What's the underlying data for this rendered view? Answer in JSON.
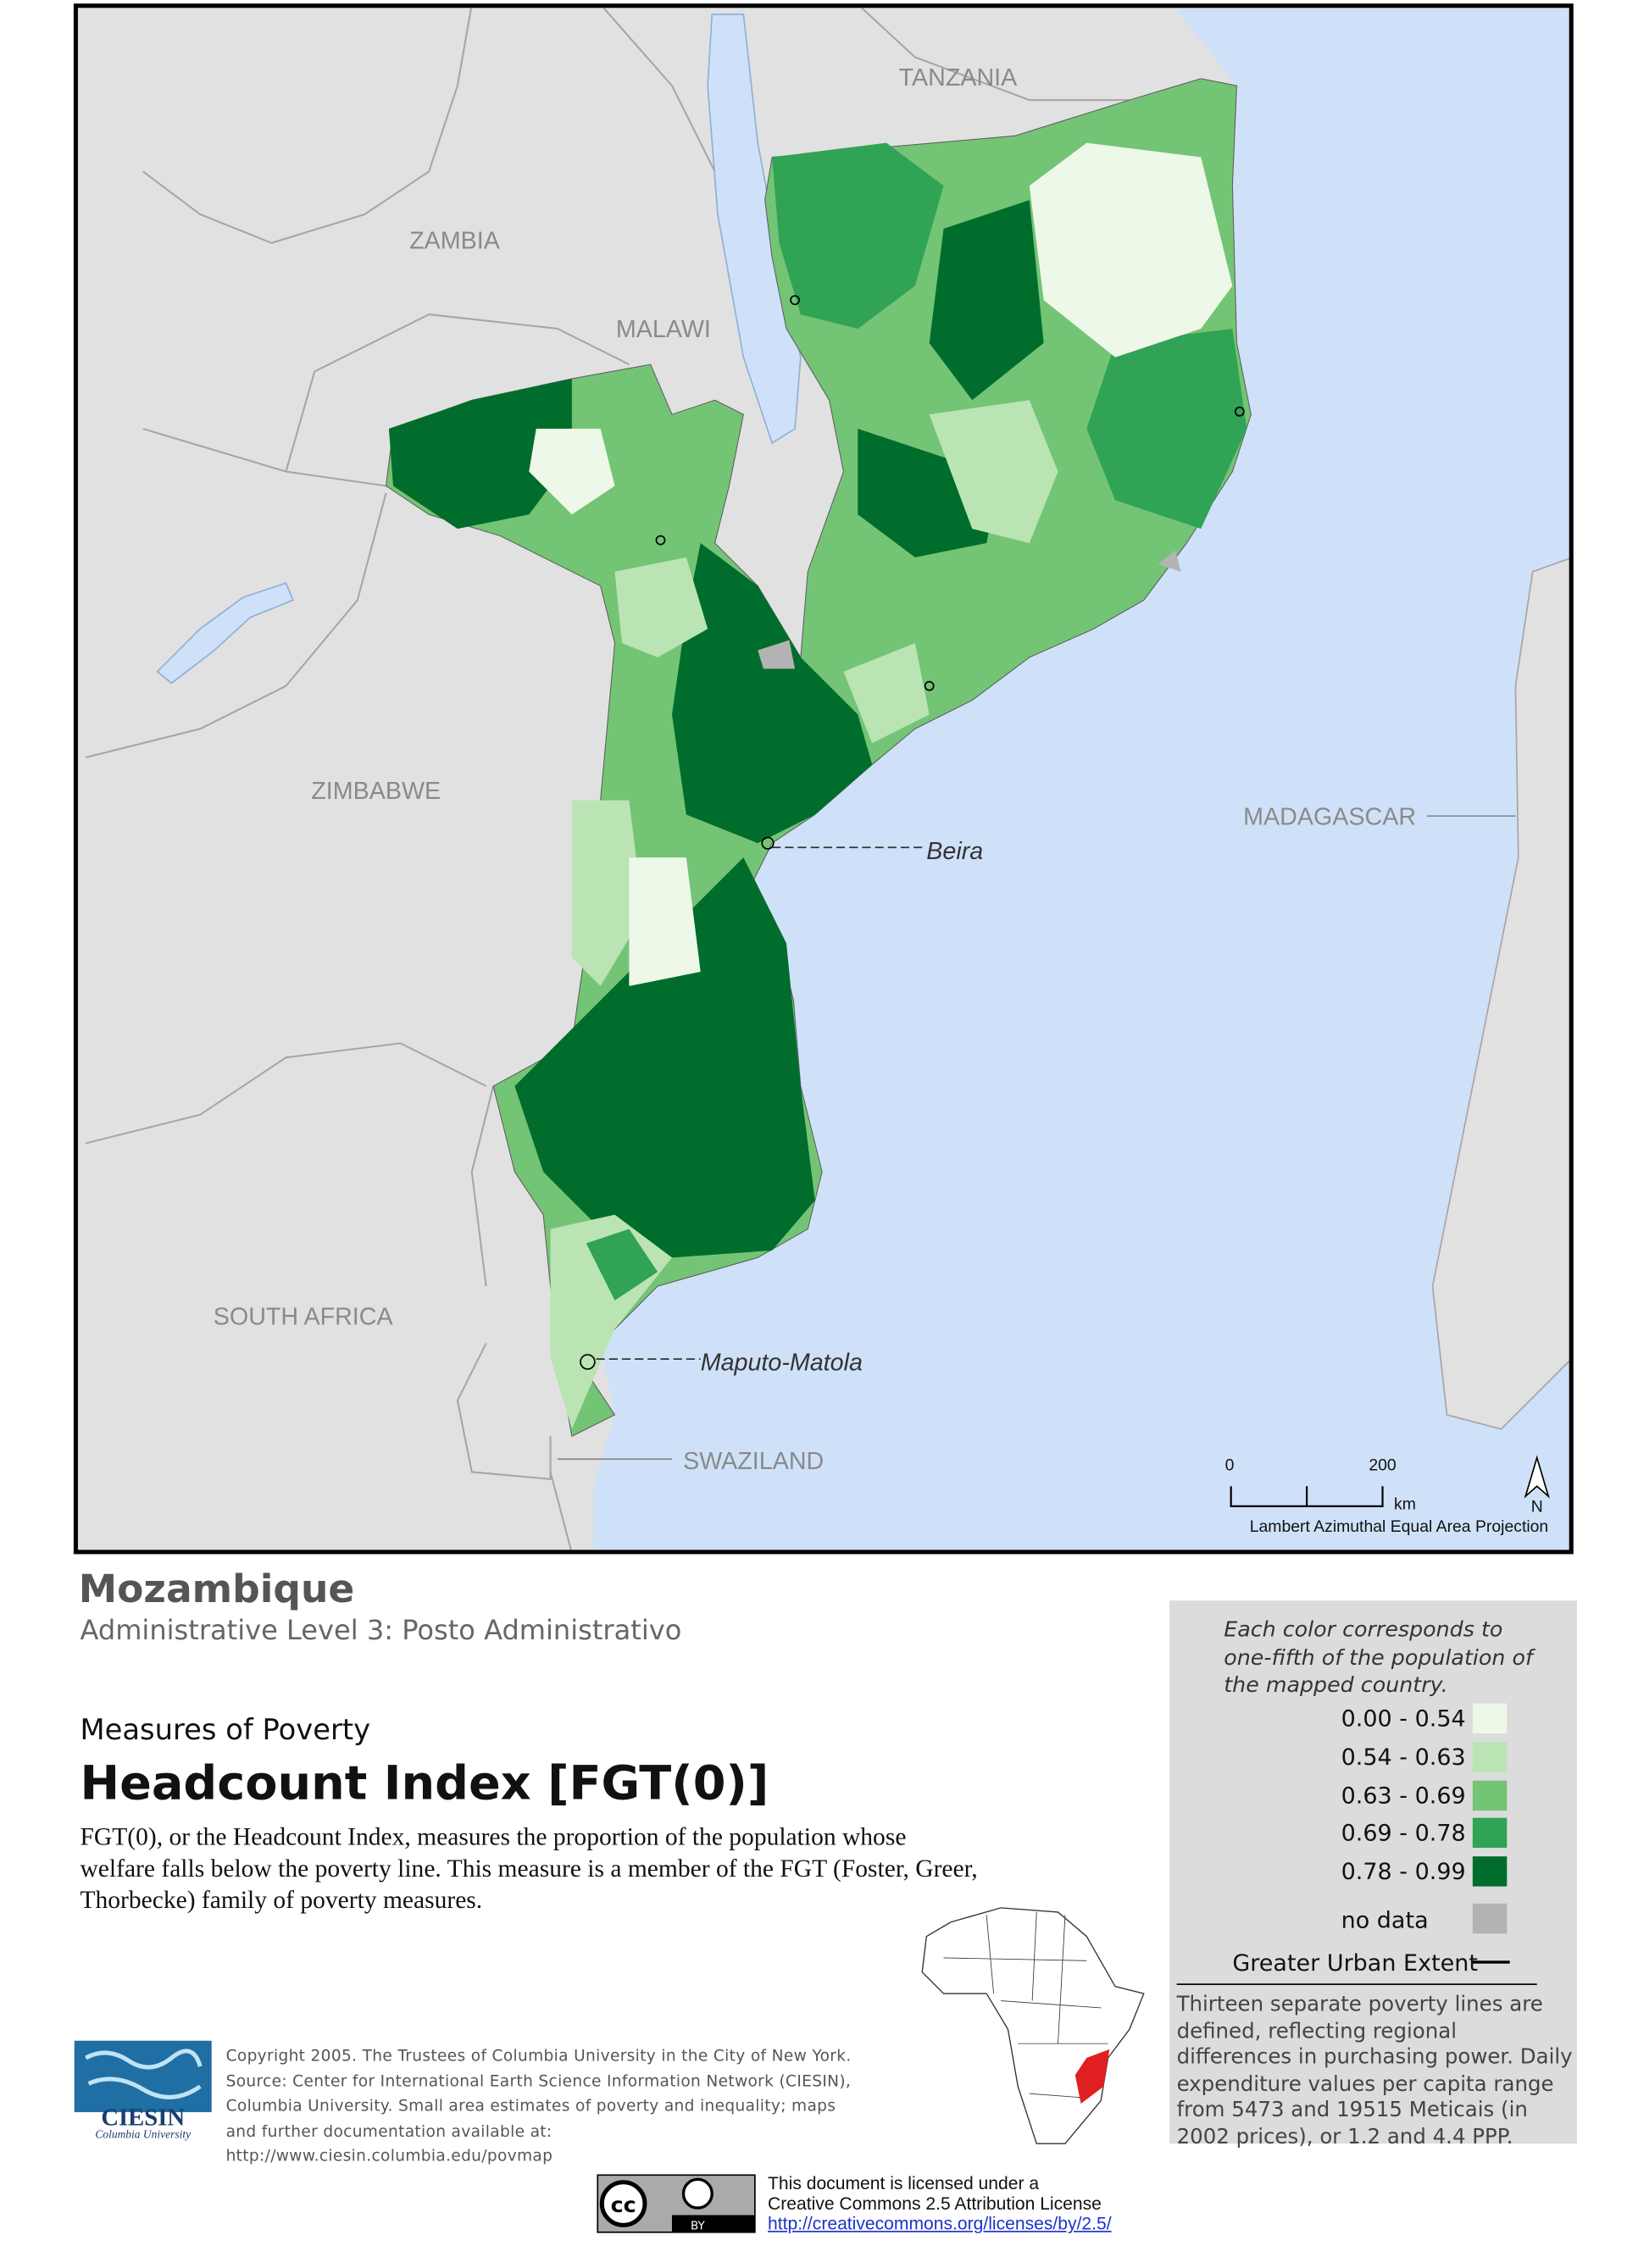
{
  "map": {
    "country_labels": [
      "TANZANIA",
      "ZAMBIA",
      "MALAWI",
      "ZIMBABWE",
      "MADAGASCAR",
      "SOUTH AFRICA",
      "SWAZILAND"
    ],
    "city_labels": [
      "Beira",
      "Maputo-Matola"
    ],
    "scale_bar": {
      "ticks": [
        "0",
        "200"
      ],
      "unit": "km"
    },
    "north": "N",
    "projection": "Lambert Azimuthal Equal Area Projection"
  },
  "header": {
    "country": "Mozambique",
    "level": "Administrative Level 3: Posto Administrativo",
    "subtitle": "Measures of Poverty",
    "title": "Headcount Index [FGT(0)]",
    "description": "FGT(0), or the Headcount Index, measures the proportion of the population whose welfare falls below the poverty line.  This measure is a member of the FGT (Foster, Greer, Thorbecke) family of poverty measures."
  },
  "legend": {
    "note": "Each color corresponds to one-fifth of the population of the mapped country.",
    "classes": [
      {
        "label": "0.00 - 0.54",
        "color": "#edf8e9"
      },
      {
        "label": "0.54 - 0.63",
        "color": "#bae4b3"
      },
      {
        "label": "0.63 - 0.69",
        "color": "#74c476"
      },
      {
        "label": "0.69 - 0.78",
        "color": "#31a354"
      },
      {
        "label": "0.78 - 0.99",
        "color": "#006d2c"
      }
    ],
    "no_data": {
      "label": "no data",
      "color": "#b3b3b3"
    },
    "urban": "Greater Urban Extent",
    "footnote": "Thirteen separate poverty lines are defined, reflecting regional differences in purchasing power. Daily expenditure values per capita range from 5473 and 19515 Meticais (in 2002 prices), or 1.2 and 4.4 PPP."
  },
  "credits": {
    "logo": "CIESIN",
    "logo_sub": "Columbia University",
    "text": "Copyright 2005. The Trustees of Columbia University in the City of New York. Source: Center for International Earth Science Information Network (CIESIN), Columbia University. Small area estimates of poverty and inequality; maps and further documentation available at: http://www.ciesin.columbia.edu/povmap",
    "badge": [
      "cc",
      "BY"
    ],
    "license": [
      "This document is licensed under a",
      "Creative Commons 2.5 Attribution License"
    ],
    "license_url": "http://creativecommons.org/licenses/by/2.5/"
  }
}
